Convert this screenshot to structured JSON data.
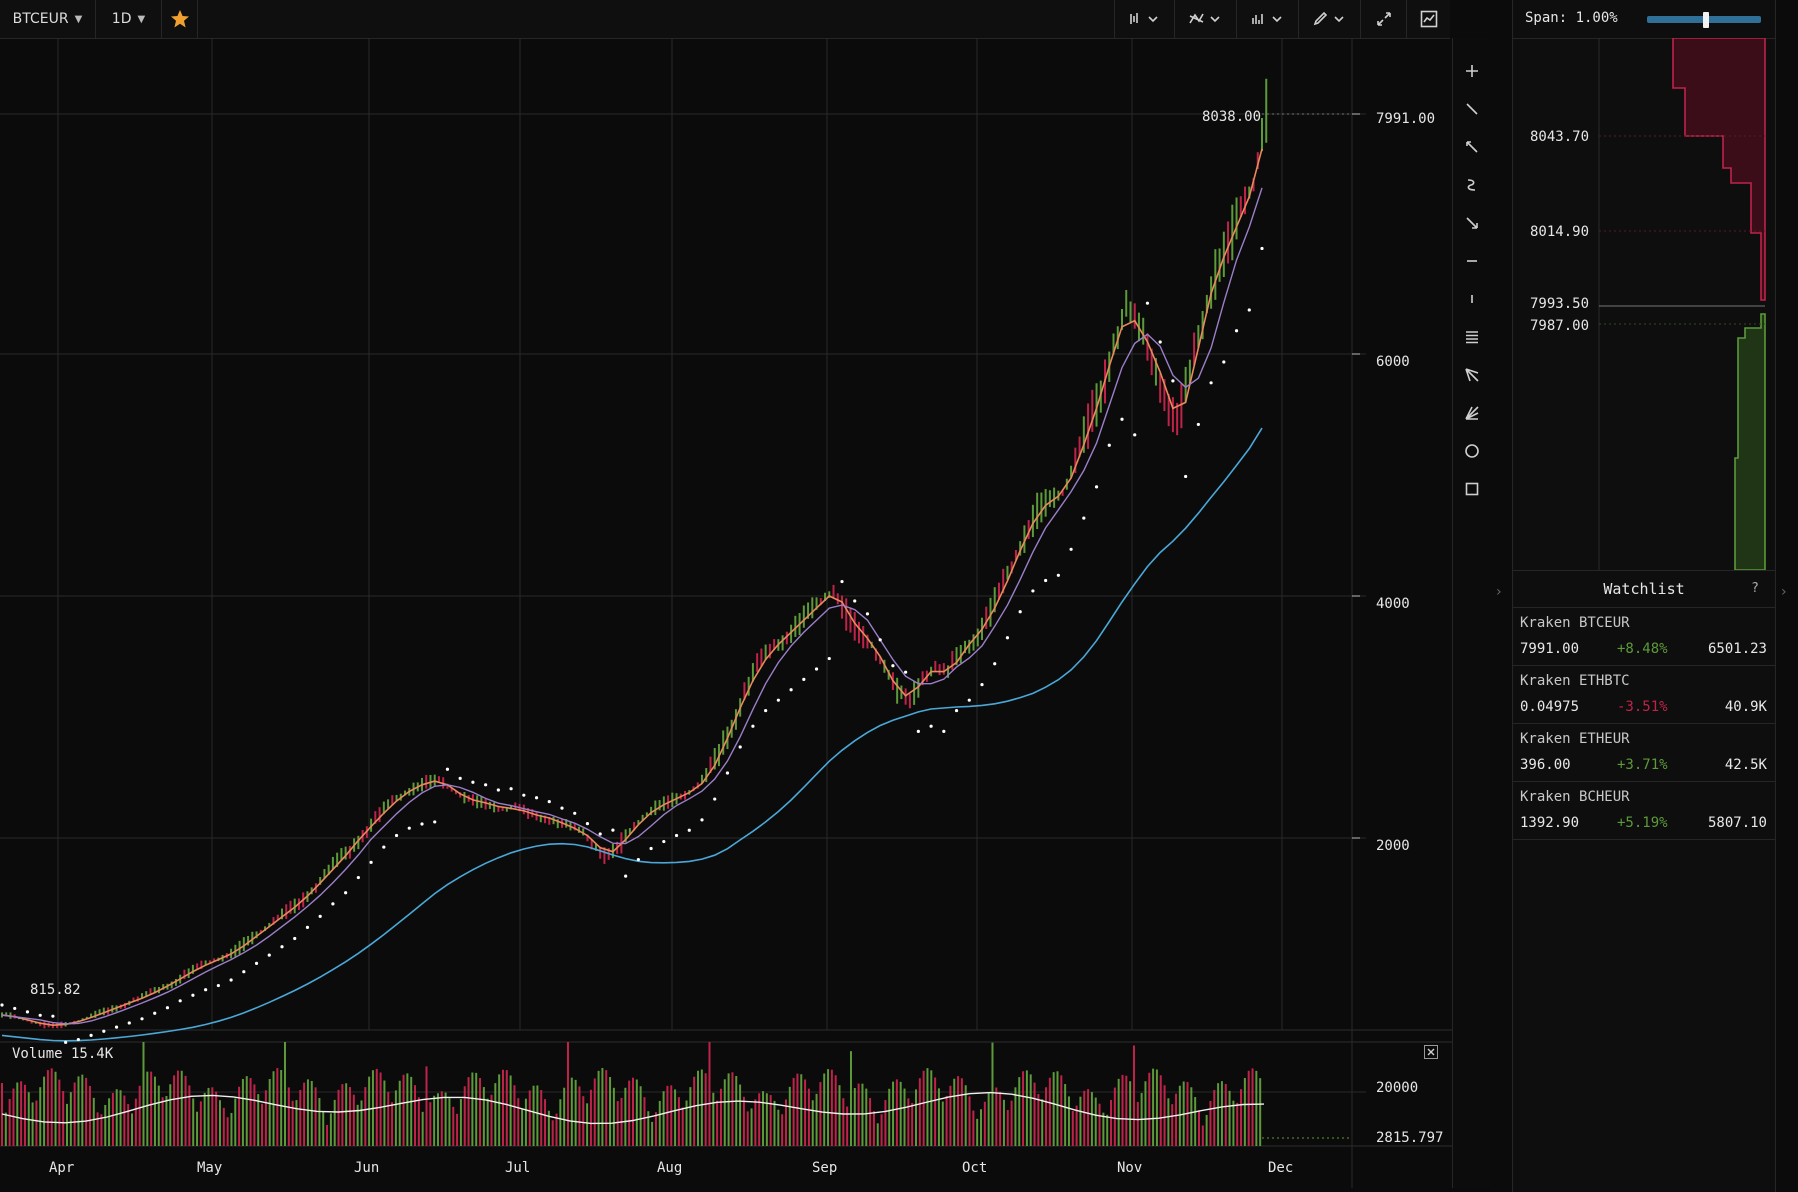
{
  "toolbar": {
    "symbol": "BTCEUR",
    "interval": "1D"
  },
  "colors": {
    "up": "#5c9a3a",
    "down": "#c0234a",
    "accent_star": "#f0a030",
    "ema_fast": "#e88a5c",
    "ema_mid": "#9b7fc9",
    "sma_slow": "#4aa8d8",
    "psar": "#ffffff",
    "grid": "#2a2a2a"
  },
  "chart": {
    "price_labels": {
      "high_marker": "8038.00",
      "low_marker": "815.82",
      "last": "7991.00"
    },
    "y_ticks": [
      "6000",
      "4000",
      "2000"
    ],
    "x_ticks": [
      "Apr",
      "May",
      "Jun",
      "Jul",
      "Aug",
      "Sep",
      "Oct",
      "Nov",
      "Dec"
    ],
    "volume": {
      "title": "Volume 15.4K",
      "ticks": [
        "20000",
        "2815.797"
      ]
    }
  },
  "chart_data": {
    "type": "candlestick",
    "series": [
      {
        "name": "BTCEUR",
        "values": [
          900,
          880,
          860,
          840,
          835,
          850,
          870,
          900,
          930,
          960,
          990,
          1020,
          1060,
          1100,
          1150,
          1190,
          1230,
          1260,
          1300,
          1360,
          1420,
          1480,
          1540,
          1600,
          1680,
          1760,
          1850,
          1930,
          2040,
          2150,
          2260,
          2350,
          2420,
          2460,
          2480,
          2400,
          2330,
          2300,
          2280,
          2240,
          2250,
          2200,
          2180,
          2150,
          2100,
          2060,
          1980,
          1900,
          1930,
          2050,
          2170,
          2250,
          2300,
          2350,
          2400,
          2500,
          2700,
          2950,
          3200,
          3400,
          3550,
          3650,
          3750,
          3850,
          3950,
          4050,
          3850,
          3700,
          3600,
          3400,
          3200,
          3150,
          3350,
          3400,
          3350,
          3550,
          3650,
          3800,
          4000,
          4250,
          4500,
          4700,
          4800,
          4850,
          5100,
          5400,
          5700,
          6100,
          6350,
          6200,
          6000,
          5700,
          5400,
          5800,
          6300,
          6700,
          6900,
          7200,
          7400,
          7991
        ]
      }
    ],
    "y_ticks": [
      2000,
      4000,
      6000,
      7991
    ],
    "x_ticks": [
      "Apr",
      "May",
      "Jun",
      "Jul",
      "Aug",
      "Sep",
      "Oct",
      "Nov",
      "Dec"
    ],
    "high": 8038.0,
    "low": 815.82
  },
  "tools": [
    "plus-icon",
    "line-icon",
    "ray-icon",
    "curve-icon",
    "arrow-icon",
    "hline-icon",
    "vline-icon",
    "fib-icon",
    "pitchfork-icon",
    "fan-icon",
    "circle-icon",
    "rectangle-icon"
  ],
  "right_panel": {
    "span_label": "Span: 1.00%",
    "span_value": 0.52,
    "depth_levels": [
      "8043.70",
      "8014.90",
      "7993.50",
      "7987.00"
    ],
    "watchlist": {
      "title": "Watchlist",
      "help": "?",
      "items": [
        {
          "name": "Kraken BTCEUR",
          "price": "7991.00",
          "change": "+8.48%",
          "volume": "6501.23",
          "dir": "up"
        },
        {
          "name": "Kraken ETHBTC",
          "price": "0.04975",
          "change": "-3.51%",
          "volume": "40.9K",
          "dir": "down"
        },
        {
          "name": "Kraken ETHEUR",
          "price": "396.00",
          "change": "+3.71%",
          "volume": "42.5K",
          "dir": "up"
        },
        {
          "name": "Kraken BCHEUR",
          "price": "1392.90",
          "change": "+5.19%",
          "volume": "5807.10",
          "dir": "up"
        }
      ]
    }
  }
}
